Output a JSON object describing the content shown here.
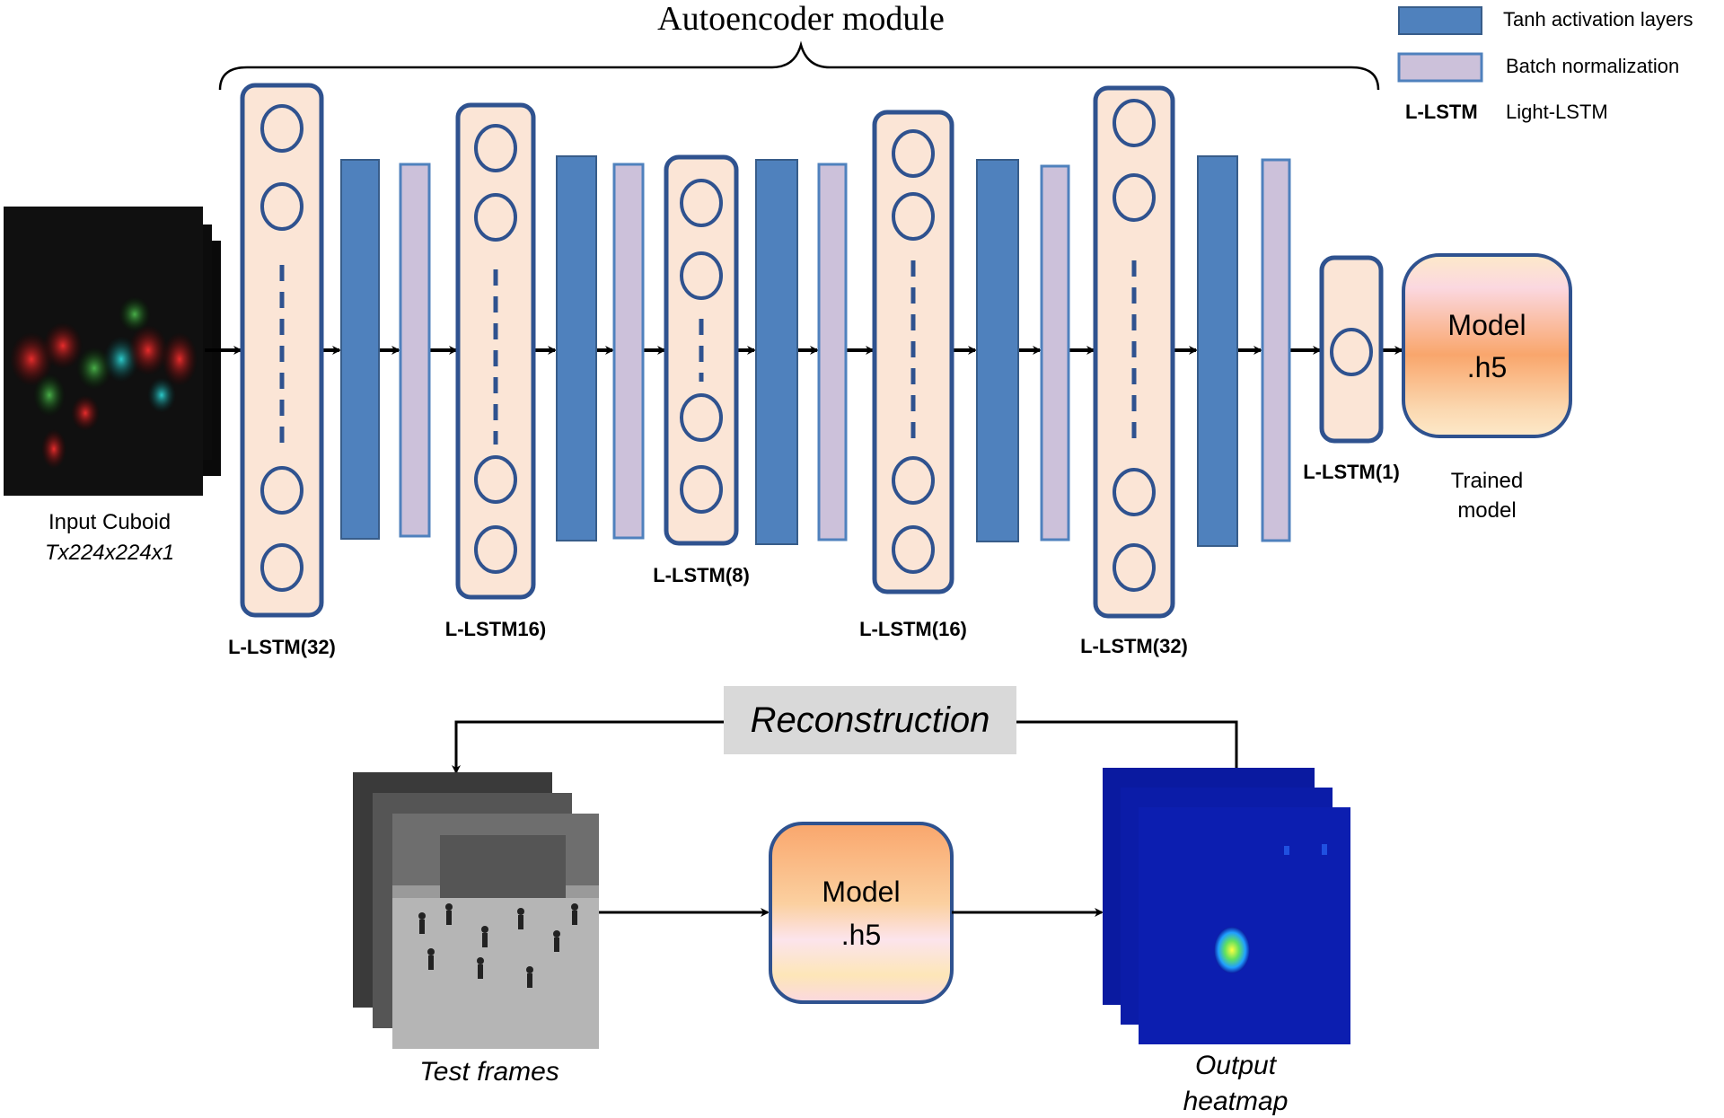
{
  "title": "Autoencoder module",
  "legend": {
    "tanh": "Tanh activation layers",
    "batchnorm": "Batch normalization",
    "abbr": "L-LSTM",
    "abbr_full": "Light-LSTM"
  },
  "input": {
    "label": "Input Cuboid",
    "shape": "Tx224x224x1"
  },
  "layers": [
    {
      "label": "L-LSTM(32)"
    },
    {
      "label": "L-LSTM16)"
    },
    {
      "label": "L-LSTM(8)"
    },
    {
      "label": "L-LSTM(16)"
    },
    {
      "label": "L-LSTM(32)"
    },
    {
      "label": "L-LSTM(1)"
    }
  ],
  "trained_model": {
    "name": "Model",
    "ext": ".h5",
    "caption_line1": "Trained",
    "caption_line2": "model"
  },
  "reconstruction": "Reconstruction",
  "test_model": {
    "name": "Model",
    "ext": ".h5"
  },
  "test_frames": "Test frames",
  "output": {
    "line1": "Output",
    "line2": "heatmap"
  },
  "colors": {
    "tanh_fill": "#4f81bd",
    "tanh_stroke": "#385d8a",
    "bn_fill": "#ccc1da",
    "lstm_fill": "#fbe5d6",
    "lstm_stroke": "#2f528f",
    "model_top": "#f9a66c",
    "model_mid": "#fce4ec",
    "heatmap_bg": "#0a1aa0"
  }
}
